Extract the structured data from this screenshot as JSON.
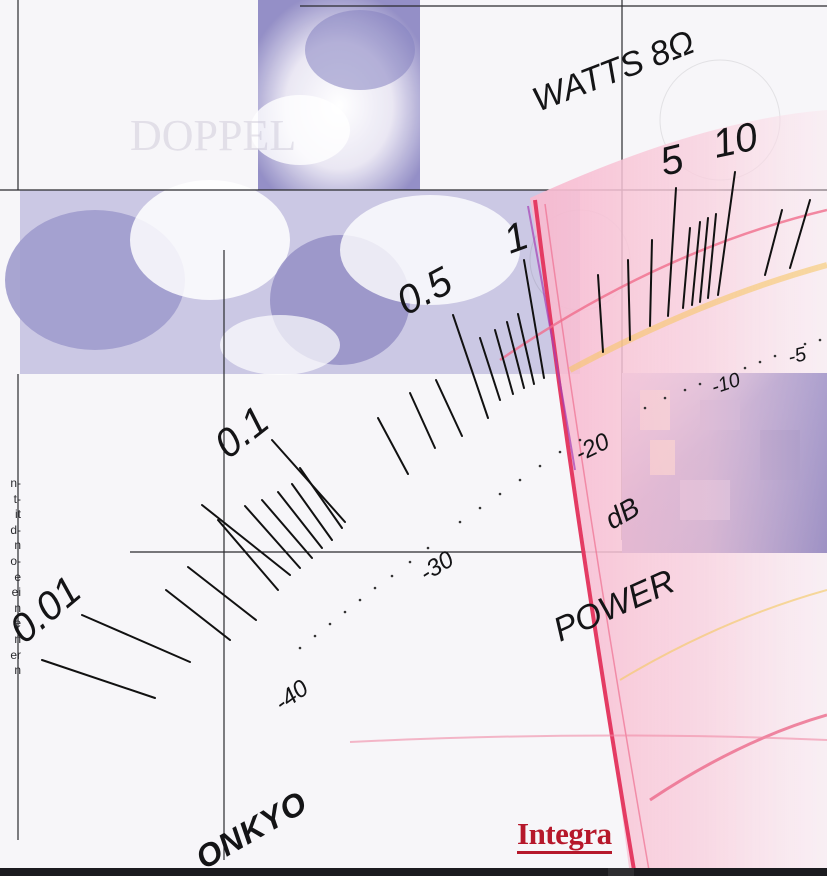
{
  "meter": {
    "watts_label": "WATTS 8Ω",
    "watt_ticks": [
      "0.01",
      "0.1",
      "0.5",
      "1",
      "5",
      "10"
    ],
    "db_ticks": [
      "-40",
      "-30",
      "-20",
      "-10",
      "-5"
    ],
    "db_label": "dB",
    "power_label": "POWER"
  },
  "brand": {
    "onkyo": "ONKYO",
    "integra": "Integra"
  },
  "left_column_fragments": [
    "n-",
    "t-",
    "it",
    "d-",
    "n",
    "o-",
    "e",
    "ei",
    "n",
    "e",
    "n",
    "er",
    "n"
  ],
  "background_text": {
    "headline_fragment": "DOPPEL"
  },
  "colors": {
    "brand_red": "#b6182b",
    "meter_pink": "#f2a6c0",
    "sky_blue": "#8a86c2"
  }
}
